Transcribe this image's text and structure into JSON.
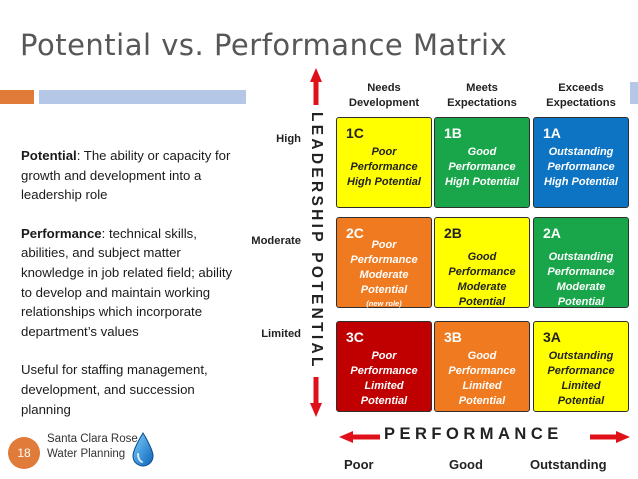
{
  "slide": {
    "title": "Potential vs. Performance Matrix",
    "page_number": "18",
    "org_line1": "Santa Clara Rose",
    "org_line2": "Water Planning"
  },
  "definitions": {
    "potential_term": "Potential",
    "potential_text": ": The ability or capacity for growth and development into a leadership role",
    "performance_term": "Performance",
    "performance_text": ": technical skills, abilities, and subject matter knowledge in job related field; ability to develop and maintain working relationships which incorporate department’s values",
    "usage": "Useful for staffing management, development, and succession planning"
  },
  "matrix": {
    "y_axis_label": "LEADERSHIP POTENTIAL",
    "x_axis_label": "PERFORMANCE",
    "columns": [
      {
        "line1": "Needs",
        "line2": "Development"
      },
      {
        "line1": "Meets",
        "line2": "Expectations"
      },
      {
        "line1": "Exceeds",
        "line2": "Expectations"
      }
    ],
    "rows": [
      "High",
      "Moderate",
      "Limited"
    ],
    "x_ticks": [
      "Poor",
      "Good",
      "Outstanding"
    ],
    "cells": [
      {
        "code": "1C",
        "l1": "Poor",
        "l2": "Performance",
        "l3": "High Potential",
        "l4": "",
        "note": "",
        "color": "yellow"
      },
      {
        "code": "1B",
        "l1": "Good",
        "l2": "Performance",
        "l3": "High Potential",
        "l4": "",
        "note": "",
        "color": "green"
      },
      {
        "code": "1A",
        "l1": "Outstanding",
        "l2": "Performance",
        "l3": "High Potential",
        "l4": "",
        "note": "",
        "color": "blue"
      },
      {
        "code": "2C",
        "l1": "Poor",
        "l2": "Performance",
        "l3": "Moderate",
        "l4": "Potential",
        "note": "(new role)",
        "color": "orange"
      },
      {
        "code": "2B",
        "l1": "Good",
        "l2": "Performance",
        "l3": "Moderate",
        "l4": "Potential",
        "note": "",
        "color": "yellow"
      },
      {
        "code": "2A",
        "l1": "Outstanding",
        "l2": "Performance",
        "l3": "Moderate",
        "l4": "Potential",
        "note": "",
        "color": "green"
      },
      {
        "code": "3C",
        "l1": "Poor",
        "l2": "Performance",
        "l3": "Limited",
        "l4": "Potential",
        "note": "",
        "color": "red"
      },
      {
        "code": "3B",
        "l1": "Good",
        "l2": "Performance",
        "l3": "Limited",
        "l4": "Potential",
        "note": "",
        "color": "orange"
      },
      {
        "code": "3A",
        "l1": "Outstanding",
        "l2": "Performance",
        "l3": "Limited",
        "l4": "Potential",
        "note": "",
        "color": "yellow"
      }
    ]
  },
  "colors": {
    "yellow": "#ffff00",
    "green": "#19a64a",
    "blue": "#0d73c3",
    "orange": "#f07a1f",
    "red": "#c00000",
    "arrow": "#e0101a",
    "accent_orange": "#e07b39",
    "accent_blue": "#b4c7e7"
  },
  "icons": [
    "water-drop-icon",
    "up-arrow-icon",
    "down-arrow-icon",
    "left-arrow-icon",
    "right-arrow-icon"
  ]
}
